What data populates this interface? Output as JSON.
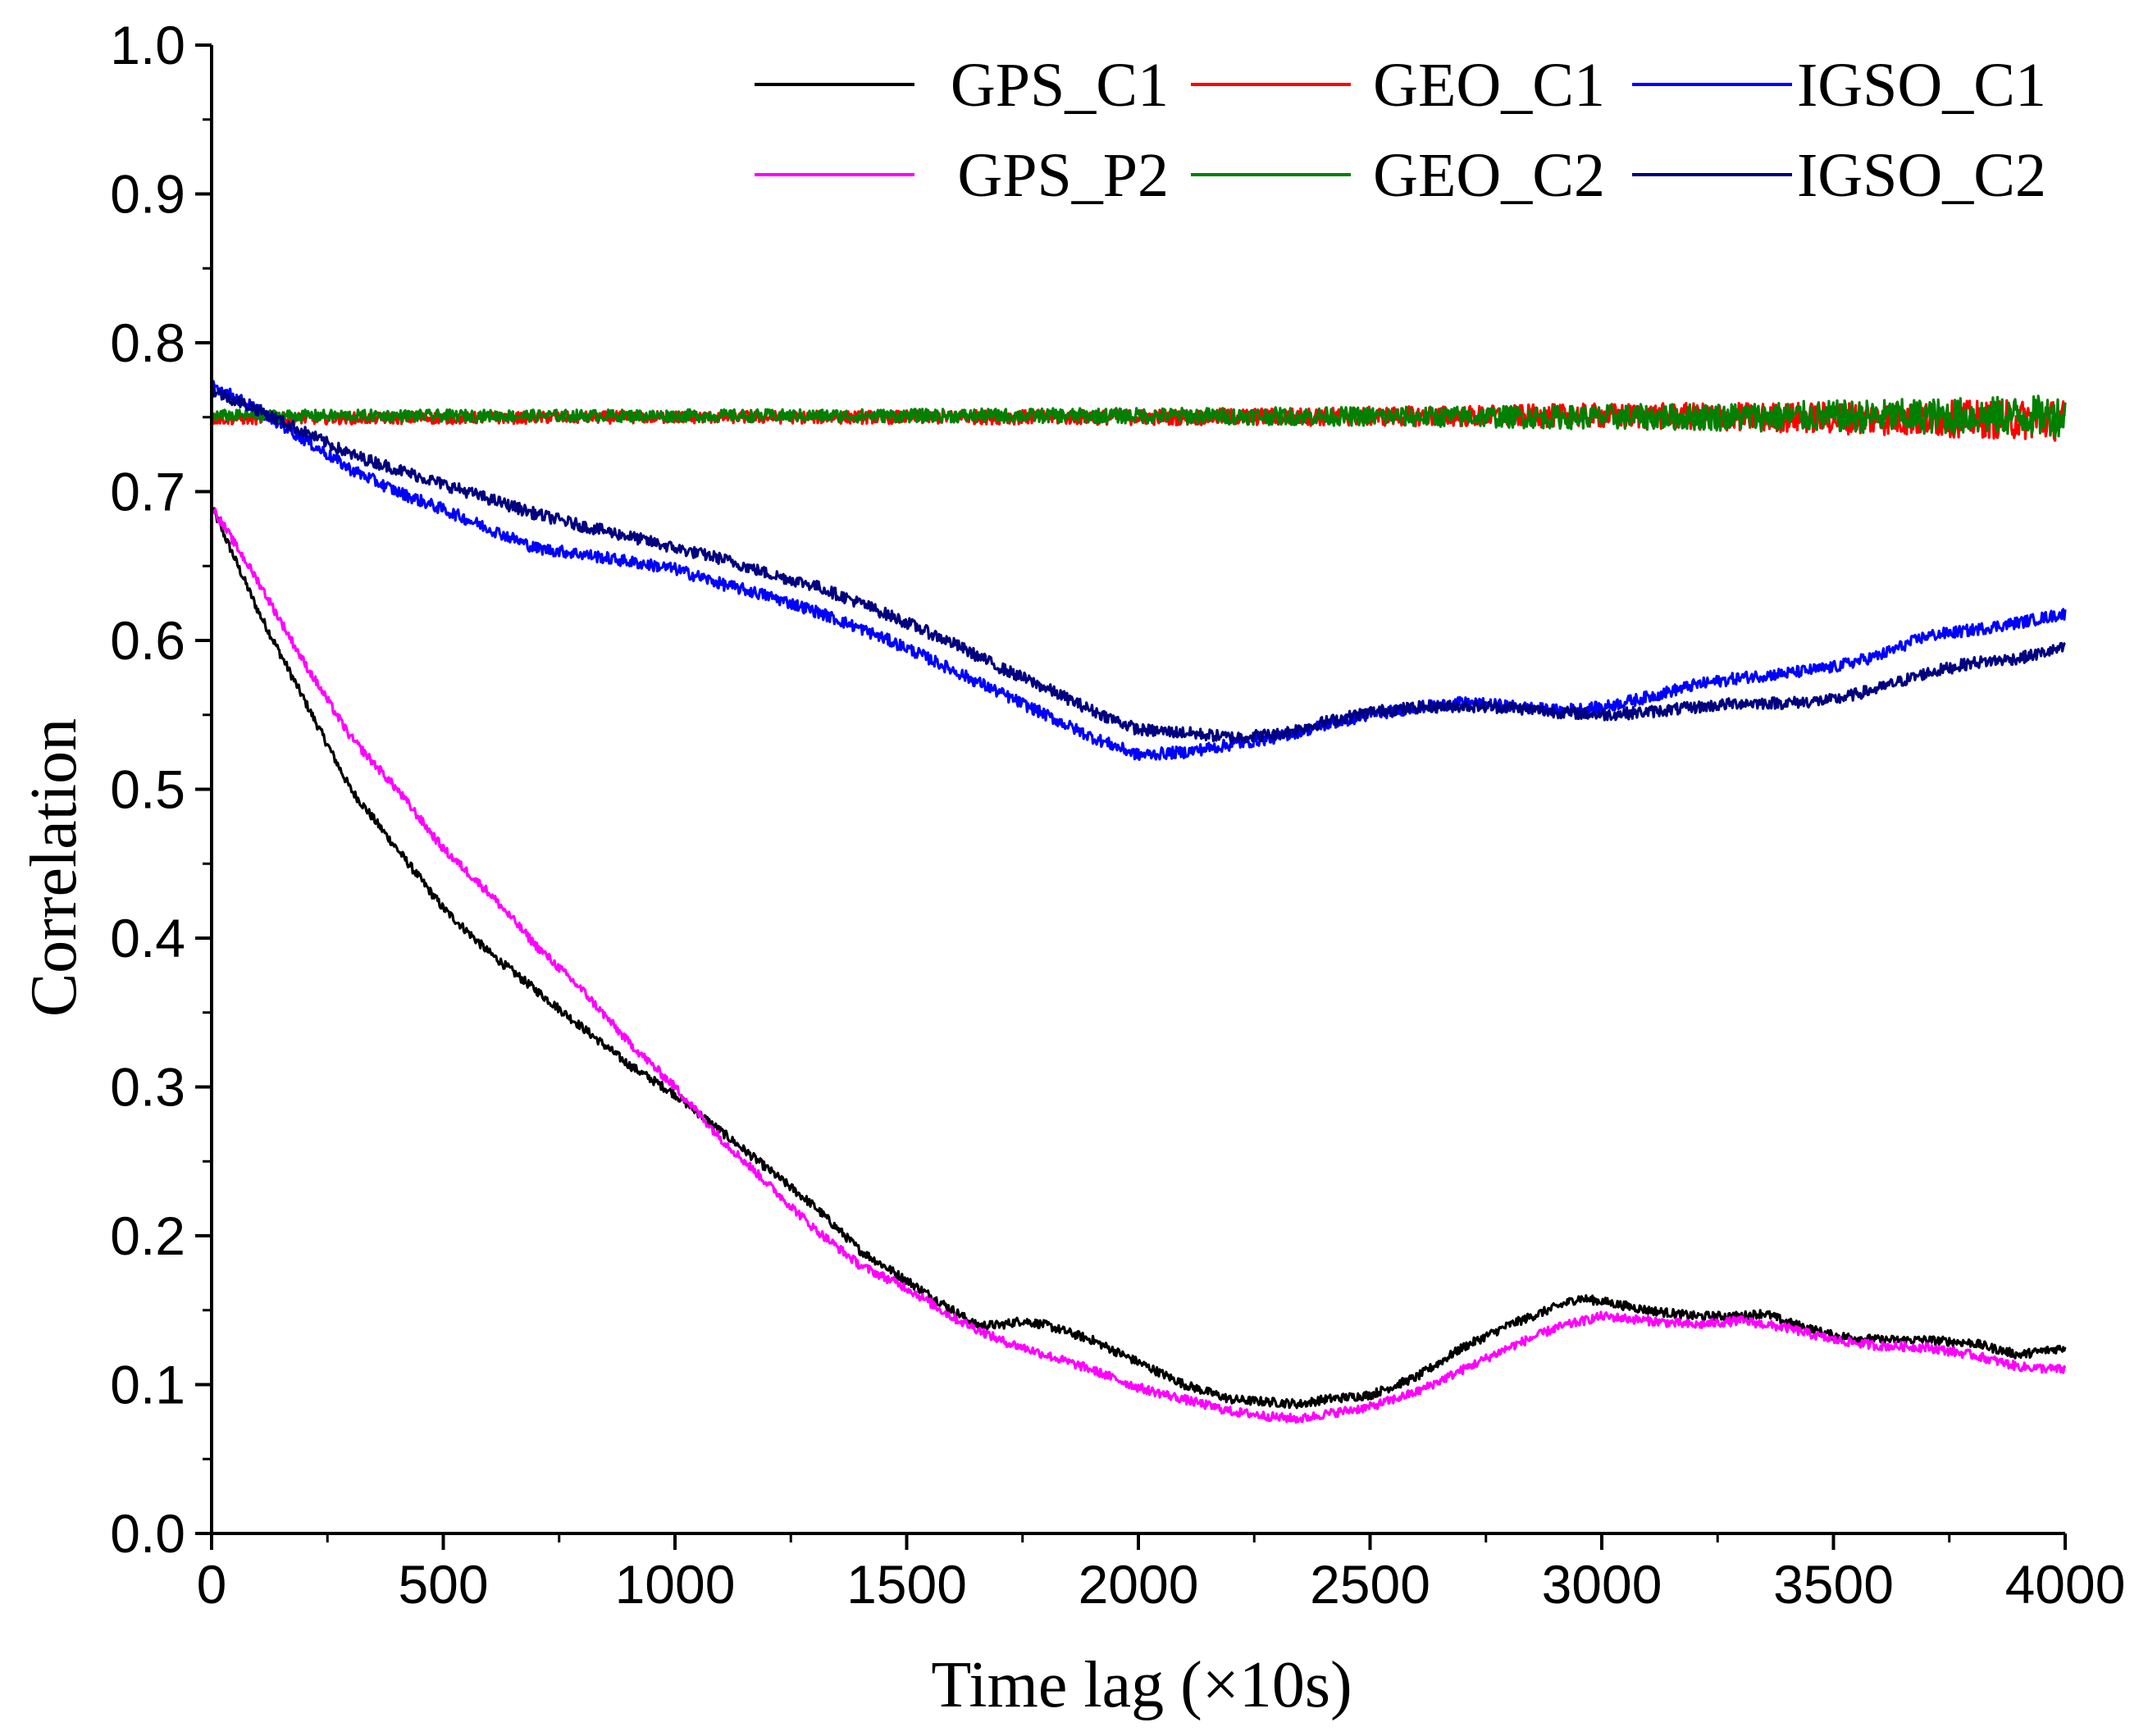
{
  "chart_data": {
    "type": "line",
    "title": "",
    "xlabel": "Time lag (×10s)",
    "ylabel": "Correlation",
    "xlim": [
      0,
      4000
    ],
    "ylim": [
      0.0,
      1.0
    ],
    "xticks": [
      0,
      500,
      1000,
      1500,
      2000,
      2500,
      3000,
      3500,
      4000
    ],
    "xtick_labels": [
      "0",
      "500",
      "1000",
      "1500",
      "2000",
      "2500",
      "3000",
      "3500",
      "4000"
    ],
    "yticks": [
      0.0,
      0.1,
      0.2,
      0.3,
      0.4,
      0.5,
      0.6,
      0.7,
      0.8,
      0.9,
      1.0
    ],
    "ytick_labels": [
      "0.0",
      "0.1",
      "0.2",
      "0.3",
      "0.4",
      "0.5",
      "0.6",
      "0.7",
      "0.8",
      "0.9",
      "1.0"
    ],
    "grid": false,
    "legend_position": "top-right",
    "series": [
      {
        "name": "GPS_C1",
        "color": "#000000",
        "noise": 0.003,
        "x": [
          0,
          100,
          200,
          300,
          400,
          500,
          600,
          700,
          800,
          900,
          1000,
          1100,
          1200,
          1300,
          1350,
          1400,
          1500,
          1600,
          1650,
          1700,
          1750,
          1800,
          1900,
          2000,
          2100,
          2200,
          2300,
          2350,
          2400,
          2500,
          2600,
          2700,
          2800,
          2900,
          2950,
          3000,
          3100,
          3200,
          3300,
          3350,
          3400,
          3500,
          3600,
          3700,
          3800,
          3900,
          4000
        ],
        "y": [
          0.69,
          0.62,
          0.56,
          0.5,
          0.46,
          0.42,
          0.39,
          0.365,
          0.34,
          0.315,
          0.295,
          0.27,
          0.245,
          0.22,
          0.205,
          0.19,
          0.17,
          0.15,
          0.14,
          0.14,
          0.143,
          0.14,
          0.13,
          0.115,
          0.1,
          0.09,
          0.088,
          0.087,
          0.09,
          0.093,
          0.105,
          0.125,
          0.14,
          0.152,
          0.158,
          0.156,
          0.15,
          0.146,
          0.146,
          0.148,
          0.142,
          0.133,
          0.13,
          0.13,
          0.128,
          0.12,
          0.125
        ]
      },
      {
        "name": "GEO_C1",
        "color": "#ff0000",
        "noise": 0.004,
        "noise_growth": 2.5,
        "x": [
          0,
          1000,
          2000,
          3000,
          4000
        ],
        "y": [
          0.749,
          0.75,
          0.75,
          0.751,
          0.748
        ]
      },
      {
        "name": "IGSO_C1",
        "color": "#0000ff",
        "noise": 0.004,
        "x": [
          0,
          100,
          200,
          300,
          400,
          500,
          600,
          700,
          800,
          900,
          1000,
          1100,
          1200,
          1300,
          1400,
          1500,
          1600,
          1700,
          1800,
          1900,
          2000,
          2100,
          2200,
          2300,
          2400,
          2500,
          2600,
          2700,
          2800,
          2900,
          3000,
          3100,
          3200,
          3300,
          3400,
          3500,
          3600,
          3700,
          3800,
          3900,
          4000
        ],
        "y": [
          0.772,
          0.755,
          0.735,
          0.715,
          0.7,
          0.688,
          0.675,
          0.662,
          0.658,
          0.653,
          0.648,
          0.638,
          0.63,
          0.62,
          0.608,
          0.595,
          0.58,
          0.565,
          0.55,
          0.535,
          0.523,
          0.525,
          0.53,
          0.535,
          0.543,
          0.55,
          0.555,
          0.558,
          0.556,
          0.553,
          0.555,
          0.562,
          0.57,
          0.575,
          0.578,
          0.582,
          0.59,
          0.603,
          0.607,
          0.612,
          0.618
        ]
      },
      {
        "name": "GPS_P2",
        "color": "#ff00ff",
        "noise": 0.003,
        "x": [
          0,
          100,
          200,
          300,
          400,
          500,
          600,
          700,
          800,
          900,
          1000,
          1100,
          1200,
          1300,
          1400,
          1500,
          1600,
          1700,
          1800,
          1900,
          2000,
          2100,
          2200,
          2300,
          2350,
          2400,
          2500,
          2600,
          2700,
          2800,
          2900,
          3000,
          3100,
          3200,
          3300,
          3400,
          3500,
          3600,
          3700,
          3800,
          3900,
          4000
        ],
        "y": [
          0.69,
          0.64,
          0.585,
          0.535,
          0.5,
          0.46,
          0.43,
          0.395,
          0.365,
          0.33,
          0.3,
          0.265,
          0.235,
          0.205,
          0.18,
          0.165,
          0.145,
          0.13,
          0.12,
          0.11,
          0.098,
          0.09,
          0.082,
          0.078,
          0.077,
          0.08,
          0.085,
          0.095,
          0.11,
          0.125,
          0.138,
          0.146,
          0.143,
          0.14,
          0.143,
          0.138,
          0.13,
          0.126,
          0.125,
          0.12,
          0.112,
          0.11
        ]
      },
      {
        "name": "GEO_C2",
        "color": "#008000",
        "noise": 0.004,
        "noise_growth": 2.5,
        "x": [
          0,
          1000,
          2000,
          3000,
          4000
        ],
        "y": [
          0.751,
          0.751,
          0.751,
          0.75,
          0.751
        ]
      },
      {
        "name": "IGSO_C2",
        "color": "#000080",
        "noise": 0.004,
        "x": [
          0,
          100,
          200,
          300,
          400,
          500,
          600,
          700,
          800,
          900,
          1000,
          1100,
          1200,
          1300,
          1400,
          1500,
          1600,
          1700,
          1800,
          1900,
          2000,
          2100,
          2200,
          2300,
          2400,
          2500,
          2600,
          2700,
          2800,
          2900,
          3000,
          3100,
          3200,
          3300,
          3400,
          3500,
          3600,
          3700,
          3800,
          3900,
          4000
        ],
        "y": [
          0.768,
          0.755,
          0.74,
          0.725,
          0.715,
          0.705,
          0.695,
          0.685,
          0.677,
          0.67,
          0.662,
          0.655,
          0.645,
          0.637,
          0.625,
          0.612,
          0.598,
          0.582,
          0.568,
          0.553,
          0.54,
          0.538,
          0.535,
          0.537,
          0.545,
          0.552,
          0.555,
          0.556,
          0.555,
          0.552,
          0.55,
          0.552,
          0.555,
          0.558,
          0.558,
          0.56,
          0.568,
          0.578,
          0.585,
          0.588,
          0.595
        ]
      }
    ]
  }
}
